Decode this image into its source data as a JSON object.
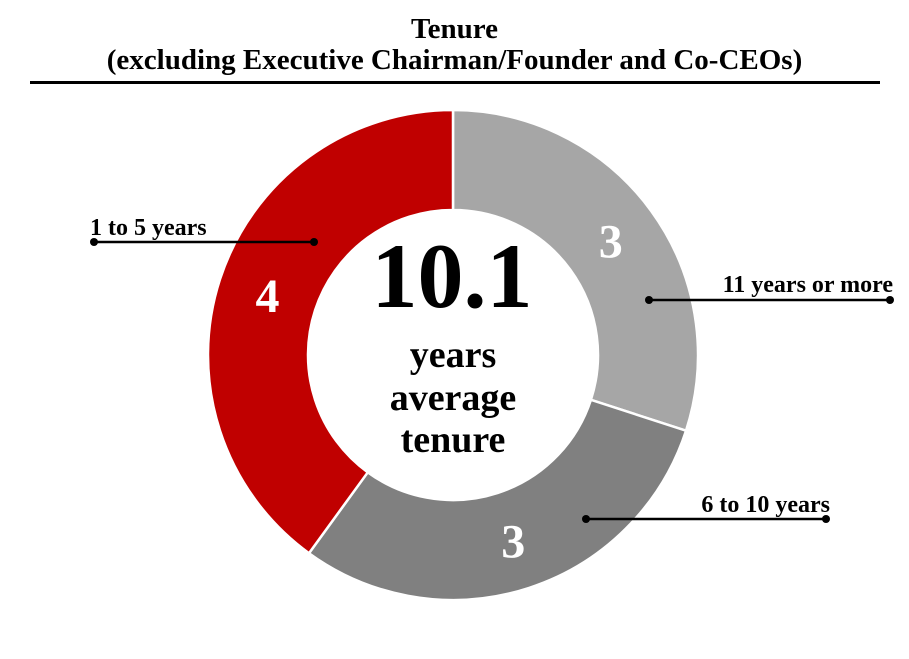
{
  "title": {
    "line1": "Tenure",
    "line2": "(excluding Executive Chairman/Founder and Co-CEOs)"
  },
  "chart_data": {
    "type": "pie",
    "subtype": "donut",
    "title": "Tenure (excluding Executive Chairman/Founder and Co-CEOs)",
    "categories": [
      "11 years or more",
      "6 to 10 years",
      "1 to 5 years"
    ],
    "values": [
      3,
      3,
      4
    ],
    "colors": [
      "#A6A6A6",
      "#808080",
      "#C00000"
    ],
    "start_angle_deg": 0,
    "direction": "clockwise",
    "total": 10,
    "center_annotation": {
      "value": "10.1",
      "lines": [
        "years",
        "average",
        "tenure"
      ]
    }
  },
  "callouts": [
    {
      "label": "1 to 5 years"
    },
    {
      "label": "11 years or more"
    },
    {
      "label": "6 to 10 years"
    }
  ],
  "palette": {
    "red": "#C00000",
    "light_gray": "#A6A6A6",
    "dark_gray": "#808080",
    "text": "#000000",
    "background": "#FFFFFF"
  }
}
